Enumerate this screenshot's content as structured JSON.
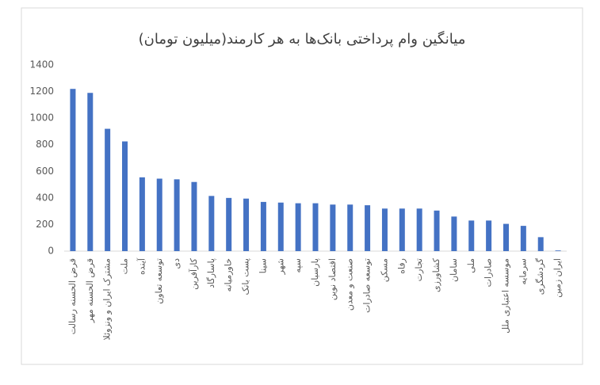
{
  "chart_data": {
    "type": "bar",
    "title": "میانگین وام پرداختی بانک‌ها به هر کارمند(میلیون تومان)",
    "categories": [
      "قرض الحسنه رسالت",
      "قرض الحسنه مهر",
      "مشترک ایران و ونزوئلا",
      "ملت",
      "آینده",
      "توسعه تعاون",
      "دی",
      "کارآفرین",
      "پاسارگاد",
      "خاورمیانه",
      "پست بانک",
      "سینا",
      "شهر",
      "سپه",
      "پارسیان",
      "اقتصاد نوین",
      "صنعت و معدن",
      "توسعه صادرات",
      "مسکن",
      "رفاه",
      "تجارت",
      "کشاورزی",
      "سامان",
      "ملی",
      "صادرات",
      "موسسه اعتباری ملل",
      "سرمایه",
      "گردشگری",
      "ایران زمین"
    ],
    "values": [
      1220,
      1190,
      920,
      825,
      555,
      545,
      540,
      520,
      415,
      400,
      395,
      370,
      365,
      360,
      360,
      350,
      350,
      345,
      320,
      320,
      320,
      305,
      260,
      230,
      230,
      205,
      190,
      105,
      5
    ],
    "color": "#4472c4",
    "ylim": [
      0,
      1400
    ],
    "yticks": [
      0,
      200,
      400,
      600,
      800,
      1000,
      1200,
      1400
    ],
    "grid": false
  }
}
